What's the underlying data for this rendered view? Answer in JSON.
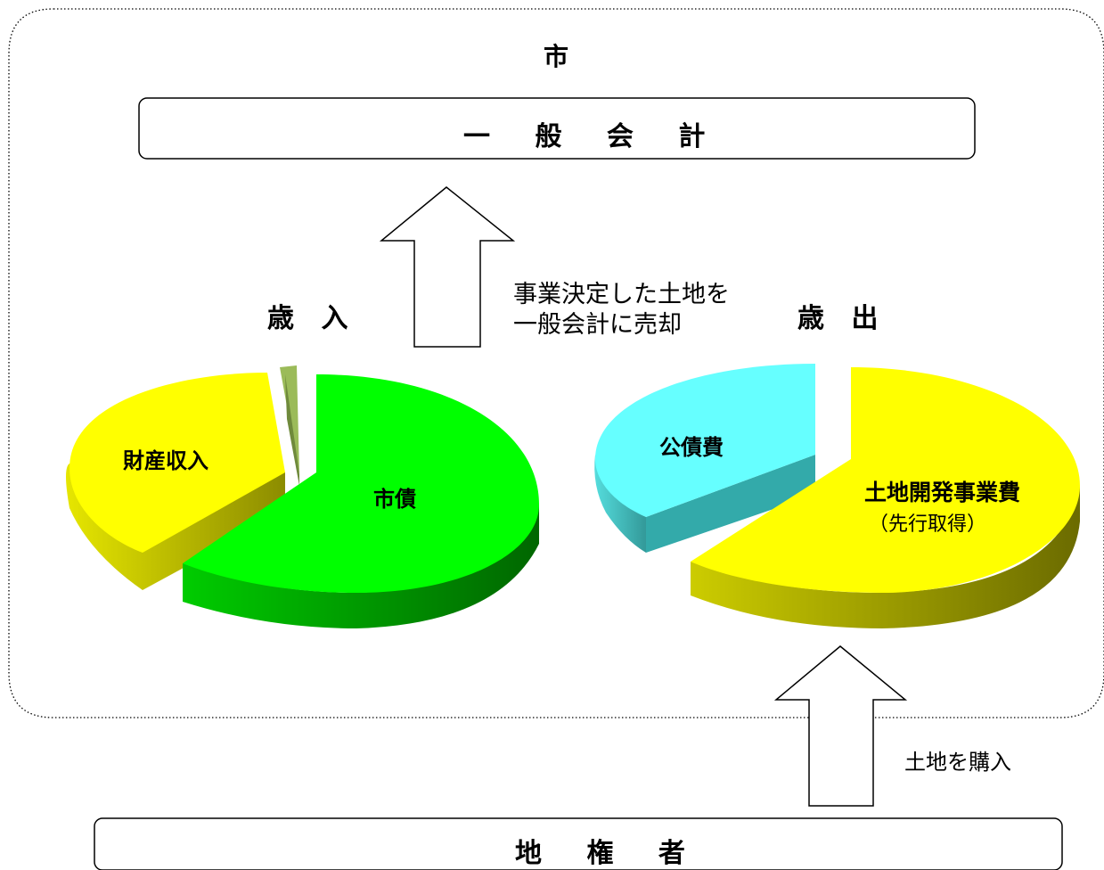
{
  "city": {
    "label": "市"
  },
  "general_account": {
    "label": "一 般 会 計"
  },
  "transfer_note": {
    "line1": "事業決定した土地を",
    "line2": "一般会計に売却"
  },
  "revenue": {
    "title": "歳 入",
    "slices": [
      {
        "label": "財産収入",
        "color": "#ffff00"
      },
      {
        "label": "市債",
        "color": "#00ff00"
      },
      {
        "label": "",
        "color": "#9bbb59"
      }
    ]
  },
  "expenditure": {
    "title": "歳 出",
    "slices": [
      {
        "label": "公債費",
        "color": "#66ffff"
      },
      {
        "label": "土地開発事業費",
        "sublabel": "（先行取得）",
        "color": "#ffff00"
      }
    ]
  },
  "purchase_note": {
    "label": "土地を購入"
  },
  "landowner": {
    "label": "地 権 者"
  }
}
